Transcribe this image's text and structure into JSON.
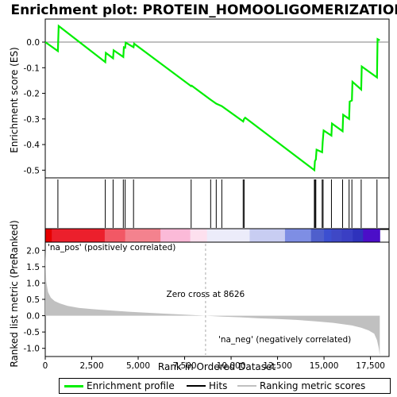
{
  "chart_data": {
    "type": "line",
    "title": "Enrichment plot: PROTEIN_HOMOOLIGOMERIZATION",
    "xlabel": "Rank in Ordered Dataset",
    "ylabel_top": "Enrichment score (ES)",
    "ylabel_bottom": "Ranked list metric (PreRanked)",
    "xlim": [
      0,
      18500
    ],
    "x_ticks": [
      0,
      2500,
      5000,
      7500,
      10000,
      12500,
      15000,
      17500
    ],
    "x_tick_labels": [
      "0",
      "2,500",
      "5,000",
      "7,500",
      "10,000",
      "12,500",
      "15,000",
      "17,500"
    ],
    "es_ylim": [
      -0.53,
      0.09
    ],
    "es_ticks": [
      0.0,
      -0.1,
      -0.2,
      -0.3,
      -0.4,
      -0.5
    ],
    "es_tick_labels": [
      "0.0",
      "-0.1",
      "-0.2",
      "-0.3",
      "-0.4",
      "-0.5"
    ],
    "metric_ylim": [
      -1.25,
      2.25
    ],
    "metric_ticks": [
      2.0,
      1.5,
      1.0,
      0.5,
      0.0,
      -0.5,
      -1.0
    ],
    "metric_tick_labels": [
      "2.0",
      "1.5",
      "1.0",
      "0.5",
      "0.0",
      "-0.5",
      "-1.0"
    ],
    "enrichment_profile": {
      "color": "#00ee00",
      "x": [
        0,
        680,
        720,
        3230,
        3260,
        3650,
        3680,
        4200,
        4230,
        4300,
        4330,
        4750,
        4780,
        7850,
        7880,
        8900,
        9200,
        9500,
        10650,
        10700,
        10760,
        14480,
        14510,
        14560,
        14600,
        14900,
        14930,
        14980,
        15400,
        15430,
        16000,
        16030,
        16350,
        16380,
        16500,
        16530,
        17000,
        17030,
        17850,
        17880,
        18000
      ],
      "y": [
        0.0,
        -0.035,
        0.063,
        -0.078,
        -0.042,
        -0.063,
        -0.032,
        -0.058,
        -0.02,
        -0.022,
        -0.002,
        -0.02,
        -0.006,
        -0.172,
        -0.17,
        -0.225,
        -0.24,
        -0.25,
        -0.31,
        -0.3,
        -0.295,
        -0.5,
        -0.465,
        -0.458,
        -0.42,
        -0.43,
        -0.39,
        -0.345,
        -0.365,
        -0.318,
        -0.348,
        -0.284,
        -0.3,
        -0.232,
        -0.228,
        -0.155,
        -0.185,
        -0.095,
        -0.138,
        0.012,
        0.007
      ]
    },
    "hits": [
      680,
      3230,
      3650,
      4200,
      4300,
      4750,
      7850,
      8900,
      9200,
      9500,
      10650,
      10700,
      14480,
      14520,
      14560,
      14900,
      14950,
      15400,
      16000,
      16350,
      16500,
      17000,
      17850
    ],
    "metric_scores": {
      "color": "#c0c0c0",
      "x": [
        0,
        50,
        150,
        300,
        500,
        800,
        1200,
        1800,
        2500,
        3500,
        4500,
        5500,
        6500,
        7500,
        8626,
        9500,
        10500,
        11500,
        12500,
        13500,
        14500,
        15500,
        16500,
        17000,
        17400,
        17700,
        17850,
        17950,
        18000
      ],
      "y": [
        2.05,
        1.05,
        0.72,
        0.55,
        0.45,
        0.37,
        0.3,
        0.24,
        0.2,
        0.16,
        0.12,
        0.09,
        0.06,
        0.03,
        0.0,
        -0.03,
        -0.05,
        -0.08,
        -0.1,
        -0.13,
        -0.17,
        -0.22,
        -0.3,
        -0.37,
        -0.45,
        -0.55,
        -0.75,
        -1.0,
        -1.22
      ]
    },
    "zero_cross_label": "Zero cross at 8626",
    "zero_cross": 8626,
    "pos_label": "'na_pos' (positively correlated)",
    "neg_label": "'na_neg' (negatively correlated)",
    "pos_label_color": "#cc0000",
    "neg_label_color": "#0000cc",
    "heat_bar": {
      "x_bounds": [
        0,
        350,
        3200,
        4300,
        6200,
        7800,
        8700,
        11000,
        12900,
        14300,
        15000,
        15400,
        15950,
        16550,
        17100,
        18000
      ],
      "colors": [
        "#e60000",
        "#ec1f2c",
        "#f25865",
        "#f4828e",
        "#fbbad8",
        "#fde0ee",
        "#ececfa",
        "#c8cdf2",
        "#7e8ee4",
        "#4f5fcc",
        "#3c4fd0",
        "#3f48c6",
        "#3a3fc4",
        "#2f32bc",
        "#4b0ec8"
      ]
    },
    "legend": [
      {
        "label": "Enrichment profile",
        "color": "#00ee00"
      },
      {
        "label": "Hits",
        "color": "#000000"
      },
      {
        "label": "Ranking metric scores",
        "color": "#c0c0c0"
      }
    ]
  }
}
